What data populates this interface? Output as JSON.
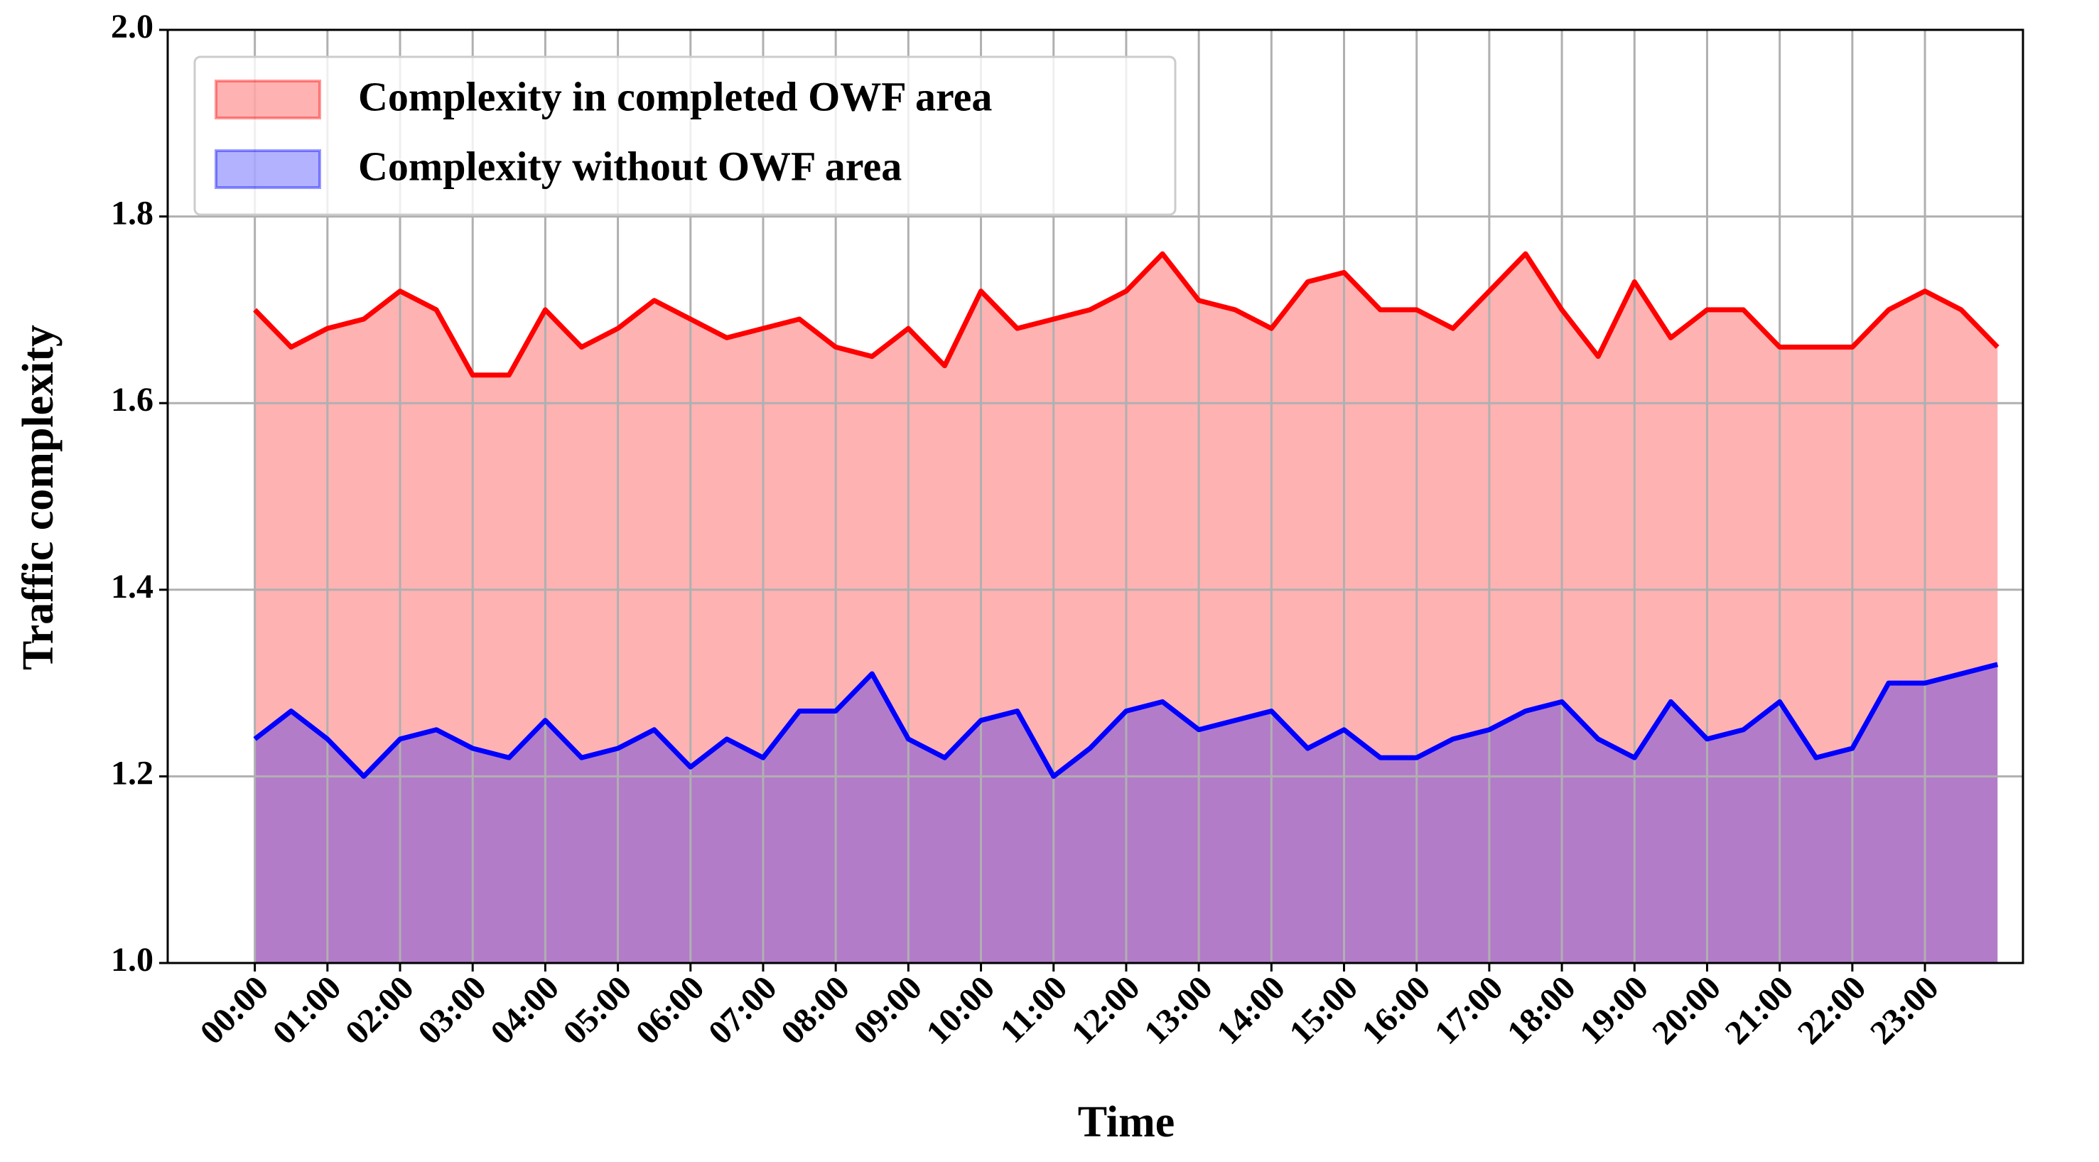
{
  "chart_data": {
    "type": "area",
    "xlabel": "Time",
    "ylabel": "Traffic complexity",
    "x": [
      0,
      0.5,
      1,
      1.5,
      2,
      2.5,
      3,
      3.5,
      4,
      4.5,
      5,
      5.5,
      6,
      6.5,
      7,
      7.5,
      8,
      8.5,
      9,
      9.5,
      10,
      10.5,
      11,
      11.5,
      12,
      12.5,
      13,
      13.5,
      14,
      14.5,
      15,
      15.5,
      16,
      16.5,
      17,
      17.5,
      18,
      18.5,
      19,
      19.5,
      20,
      20.5,
      21,
      21.5,
      22,
      22.5,
      23,
      23.5,
      24
    ],
    "series": [
      {
        "name": "Complexity in completed OWF area",
        "color": "#ff0000",
        "values": [
          1.7,
          1.66,
          1.68,
          1.69,
          1.72,
          1.7,
          1.63,
          1.63,
          1.7,
          1.66,
          1.68,
          1.71,
          1.69,
          1.67,
          1.68,
          1.69,
          1.66,
          1.65,
          1.68,
          1.64,
          1.72,
          1.68,
          1.69,
          1.7,
          1.72,
          1.76,
          1.71,
          1.7,
          1.68,
          1.73,
          1.74,
          1.7,
          1.7,
          1.68,
          1.72,
          1.76,
          1.7,
          1.65,
          1.73,
          1.67,
          1.7,
          1.7,
          1.66,
          1.66,
          1.66,
          1.7,
          1.72,
          1.7,
          1.66
        ]
      },
      {
        "name": "Complexity without OWF area",
        "color": "#0000ff",
        "values": [
          1.24,
          1.27,
          1.24,
          1.2,
          1.24,
          1.25,
          1.23,
          1.22,
          1.26,
          1.22,
          1.23,
          1.25,
          1.21,
          1.24,
          1.22,
          1.27,
          1.27,
          1.31,
          1.24,
          1.22,
          1.26,
          1.27,
          1.2,
          1.23,
          1.27,
          1.28,
          1.25,
          1.26,
          1.27,
          1.23,
          1.25,
          1.22,
          1.22,
          1.24,
          1.25,
          1.27,
          1.28,
          1.24,
          1.22,
          1.28,
          1.24,
          1.25,
          1.28,
          1.22,
          1.23,
          1.3,
          1.3,
          1.31,
          1.32
        ]
      }
    ],
    "xlim": [
      -1.2,
      24.35
    ],
    "xticks": [
      {
        "value": 0,
        "label": "00:00"
      },
      {
        "value": 1,
        "label": "01:00"
      },
      {
        "value": 2,
        "label": "02:00"
      },
      {
        "value": 3,
        "label": "03:00"
      },
      {
        "value": 4,
        "label": "04:00"
      },
      {
        "value": 5,
        "label": "05:00"
      },
      {
        "value": 6,
        "label": "06:00"
      },
      {
        "value": 7,
        "label": "07:00"
      },
      {
        "value": 8,
        "label": "08:00"
      },
      {
        "value": 9,
        "label": "09:00"
      },
      {
        "value": 10,
        "label": "10:00"
      },
      {
        "value": 11,
        "label": "11:00"
      },
      {
        "value": 12,
        "label": "12:00"
      },
      {
        "value": 13,
        "label": "13:00"
      },
      {
        "value": 14,
        "label": "14:00"
      },
      {
        "value": 15,
        "label": "15:00"
      },
      {
        "value": 16,
        "label": "16:00"
      },
      {
        "value": 17,
        "label": "17:00"
      },
      {
        "value": 18,
        "label": "18:00"
      },
      {
        "value": 19,
        "label": "19:00"
      },
      {
        "value": 20,
        "label": "20:00"
      },
      {
        "value": 21,
        "label": "21:00"
      },
      {
        "value": 22,
        "label": "22:00"
      },
      {
        "value": 23,
        "label": "23:00"
      }
    ],
    "ylim": [
      1.0,
      2.0
    ],
    "yticks": [
      {
        "value": 1.0,
        "label": "1.0"
      },
      1.2,
      1.4,
      1.6,
      1.8,
      {
        "value": 2.0,
        "label": "2.0"
      }
    ],
    "grid": true,
    "legend": "upper left"
  }
}
